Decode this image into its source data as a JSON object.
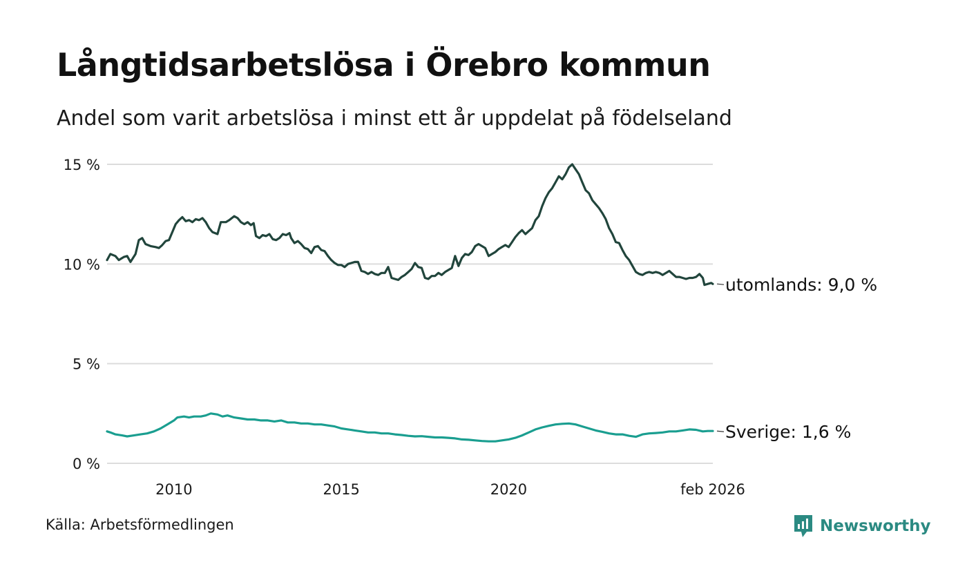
{
  "title": "Långtidsarbetslösa i Örebro kommun",
  "subtitle": "Andel som varit arbetslösa i minst ett år uppdelat på födelseland",
  "source": "Källa: Arbetsförmedlingen",
  "brand": {
    "name": "Newsworthy",
    "icon": "newsworthy-logo-icon",
    "color": "#2b8a82"
  },
  "chart_data": {
    "type": "line",
    "title": "Långtidsarbetslösa i Örebro kommun",
    "xlabel": "",
    "ylabel": "",
    "ylim": [
      0,
      15
    ],
    "xlim": [
      2008.0,
      2026.1
    ],
    "grid": true,
    "yticks": [
      0,
      5,
      10,
      15
    ],
    "ytick_labels": [
      "0 %",
      "5 %",
      "10 %",
      "15 %"
    ],
    "xticks": [
      2010,
      2015,
      2020,
      2026.1
    ],
    "xtick_labels": [
      "2010",
      "2015",
      "2020",
      "feb 2026"
    ],
    "series": [
      {
        "name": "utomlands",
        "label": "utomlands: 9,0 %",
        "color": "#21453c",
        "points": [
          [
            2008.0,
            10.2
          ],
          [
            2008.1,
            10.5
          ],
          [
            2008.25,
            10.4
          ],
          [
            2008.35,
            10.2
          ],
          [
            2008.5,
            10.35
          ],
          [
            2008.6,
            10.4
          ],
          [
            2008.7,
            10.1
          ],
          [
            2008.85,
            10.5
          ],
          [
            2008.95,
            11.2
          ],
          [
            2009.05,
            11.3
          ],
          [
            2009.15,
            11.0
          ],
          [
            2009.3,
            10.9
          ],
          [
            2009.45,
            10.85
          ],
          [
            2009.55,
            10.8
          ],
          [
            2009.65,
            10.95
          ],
          [
            2009.75,
            11.15
          ],
          [
            2009.85,
            11.2
          ],
          [
            2009.95,
            11.6
          ],
          [
            2010.05,
            12.0
          ],
          [
            2010.15,
            12.2
          ],
          [
            2010.25,
            12.35
          ],
          [
            2010.35,
            12.15
          ],
          [
            2010.45,
            12.2
          ],
          [
            2010.55,
            12.1
          ],
          [
            2010.65,
            12.25
          ],
          [
            2010.75,
            12.2
          ],
          [
            2010.85,
            12.3
          ],
          [
            2010.95,
            12.1
          ],
          [
            2011.05,
            11.8
          ],
          [
            2011.15,
            11.6
          ],
          [
            2011.3,
            11.5
          ],
          [
            2011.4,
            12.1
          ],
          [
            2011.55,
            12.1
          ],
          [
            2011.65,
            12.2
          ],
          [
            2011.8,
            12.4
          ],
          [
            2011.9,
            12.3
          ],
          [
            2012.0,
            12.1
          ],
          [
            2012.1,
            12.0
          ],
          [
            2012.2,
            12.1
          ],
          [
            2012.3,
            11.95
          ],
          [
            2012.38,
            12.05
          ],
          [
            2012.45,
            11.4
          ],
          [
            2012.55,
            11.3
          ],
          [
            2012.65,
            11.45
          ],
          [
            2012.75,
            11.4
          ],
          [
            2012.85,
            11.5
          ],
          [
            2012.95,
            11.25
          ],
          [
            2013.05,
            11.2
          ],
          [
            2013.15,
            11.3
          ],
          [
            2013.25,
            11.5
          ],
          [
            2013.35,
            11.45
          ],
          [
            2013.45,
            11.55
          ],
          [
            2013.5,
            11.3
          ],
          [
            2013.6,
            11.05
          ],
          [
            2013.7,
            11.15
          ],
          [
            2013.8,
            11.0
          ],
          [
            2013.9,
            10.8
          ],
          [
            2014.0,
            10.75
          ],
          [
            2014.1,
            10.55
          ],
          [
            2014.2,
            10.85
          ],
          [
            2014.3,
            10.9
          ],
          [
            2014.4,
            10.7
          ],
          [
            2014.5,
            10.65
          ],
          [
            2014.6,
            10.4
          ],
          [
            2014.7,
            10.2
          ],
          [
            2014.8,
            10.05
          ],
          [
            2014.9,
            9.95
          ],
          [
            2015.0,
            9.95
          ],
          [
            2015.1,
            9.85
          ],
          [
            2015.2,
            10.0
          ],
          [
            2015.3,
            10.05
          ],
          [
            2015.4,
            10.1
          ],
          [
            2015.5,
            10.1
          ],
          [
            2015.6,
            9.65
          ],
          [
            2015.7,
            9.6
          ],
          [
            2015.8,
            9.5
          ],
          [
            2015.9,
            9.6
          ],
          [
            2016.0,
            9.5
          ],
          [
            2016.1,
            9.45
          ],
          [
            2016.2,
            9.55
          ],
          [
            2016.3,
            9.55
          ],
          [
            2016.4,
            9.85
          ],
          [
            2016.5,
            9.3
          ],
          [
            2016.6,
            9.25
          ],
          [
            2016.7,
            9.2
          ],
          [
            2016.8,
            9.35
          ],
          [
            2016.9,
            9.45
          ],
          [
            2017.0,
            9.6
          ],
          [
            2017.1,
            9.75
          ],
          [
            2017.2,
            10.05
          ],
          [
            2017.3,
            9.85
          ],
          [
            2017.4,
            9.8
          ],
          [
            2017.5,
            9.3
          ],
          [
            2017.6,
            9.25
          ],
          [
            2017.7,
            9.4
          ],
          [
            2017.8,
            9.4
          ],
          [
            2017.9,
            9.55
          ],
          [
            2018.0,
            9.45
          ],
          [
            2018.1,
            9.6
          ],
          [
            2018.2,
            9.7
          ],
          [
            2018.3,
            9.8
          ],
          [
            2018.4,
            10.4
          ],
          [
            2018.5,
            9.9
          ],
          [
            2018.6,
            10.3
          ],
          [
            2018.7,
            10.5
          ],
          [
            2018.8,
            10.45
          ],
          [
            2018.9,
            10.6
          ],
          [
            2019.0,
            10.9
          ],
          [
            2019.1,
            11.0
          ],
          [
            2019.2,
            10.9
          ],
          [
            2019.3,
            10.8
          ],
          [
            2019.4,
            10.4
          ],
          [
            2019.5,
            10.5
          ],
          [
            2019.6,
            10.6
          ],
          [
            2019.7,
            10.75
          ],
          [
            2019.8,
            10.85
          ],
          [
            2019.9,
            10.95
          ],
          [
            2020.0,
            10.85
          ],
          [
            2020.1,
            11.1
          ],
          [
            2020.2,
            11.35
          ],
          [
            2020.3,
            11.55
          ],
          [
            2020.4,
            11.7
          ],
          [
            2020.5,
            11.5
          ],
          [
            2020.6,
            11.65
          ],
          [
            2020.7,
            11.8
          ],
          [
            2020.8,
            12.2
          ],
          [
            2020.9,
            12.4
          ],
          [
            2021.0,
            12.9
          ],
          [
            2021.1,
            13.3
          ],
          [
            2021.2,
            13.6
          ],
          [
            2021.3,
            13.8
          ],
          [
            2021.4,
            14.1
          ],
          [
            2021.5,
            14.4
          ],
          [
            2021.6,
            14.25
          ],
          [
            2021.7,
            14.5
          ],
          [
            2021.8,
            14.85
          ],
          [
            2021.9,
            15.0
          ],
          [
            2022.0,
            14.75
          ],
          [
            2022.1,
            14.5
          ],
          [
            2022.2,
            14.1
          ],
          [
            2022.3,
            13.7
          ],
          [
            2022.4,
            13.55
          ],
          [
            2022.5,
            13.2
          ],
          [
            2022.6,
            13.0
          ],
          [
            2022.7,
            12.8
          ],
          [
            2022.8,
            12.55
          ],
          [
            2022.9,
            12.25
          ],
          [
            2023.0,
            11.8
          ],
          [
            2023.1,
            11.5
          ],
          [
            2023.2,
            11.1
          ],
          [
            2023.3,
            11.05
          ],
          [
            2023.4,
            10.7
          ],
          [
            2023.5,
            10.4
          ],
          [
            2023.6,
            10.2
          ],
          [
            2023.7,
            9.9
          ],
          [
            2023.8,
            9.6
          ],
          [
            2023.9,
            9.5
          ],
          [
            2024.0,
            9.45
          ],
          [
            2024.1,
            9.55
          ],
          [
            2024.2,
            9.6
          ],
          [
            2024.3,
            9.55
          ],
          [
            2024.4,
            9.6
          ],
          [
            2024.5,
            9.55
          ],
          [
            2024.6,
            9.45
          ],
          [
            2024.7,
            9.55
          ],
          [
            2024.8,
            9.65
          ],
          [
            2024.9,
            9.5
          ],
          [
            2025.0,
            9.35
          ],
          [
            2025.1,
            9.35
          ],
          [
            2025.2,
            9.3
          ],
          [
            2025.3,
            9.25
          ],
          [
            2025.4,
            9.3
          ],
          [
            2025.5,
            9.3
          ],
          [
            2025.6,
            9.35
          ],
          [
            2025.7,
            9.5
          ],
          [
            2025.8,
            9.3
          ],
          [
            2025.85,
            8.95
          ],
          [
            2025.95,
            9.0
          ],
          [
            2026.05,
            9.05
          ],
          [
            2026.1,
            9.0
          ]
        ]
      },
      {
        "name": "Sverige",
        "label": "Sverige: 1,6 %",
        "color": "#1a9e90",
        "points": [
          [
            2008.0,
            1.6
          ],
          [
            2008.1,
            1.55
          ],
          [
            2008.25,
            1.45
          ],
          [
            2008.45,
            1.4
          ],
          [
            2008.6,
            1.35
          ],
          [
            2008.8,
            1.4
          ],
          [
            2009.0,
            1.45
          ],
          [
            2009.2,
            1.5
          ],
          [
            2009.4,
            1.6
          ],
          [
            2009.6,
            1.75
          ],
          [
            2009.8,
            1.95
          ],
          [
            2010.0,
            2.15
          ],
          [
            2010.1,
            2.3
          ],
          [
            2010.3,
            2.35
          ],
          [
            2010.45,
            2.3
          ],
          [
            2010.6,
            2.35
          ],
          [
            2010.8,
            2.35
          ],
          [
            2010.95,
            2.4
          ],
          [
            2011.1,
            2.5
          ],
          [
            2011.3,
            2.45
          ],
          [
            2011.45,
            2.35
          ],
          [
            2011.6,
            2.4
          ],
          [
            2011.8,
            2.3
          ],
          [
            2012.0,
            2.25
          ],
          [
            2012.2,
            2.2
          ],
          [
            2012.4,
            2.2
          ],
          [
            2012.6,
            2.15
          ],
          [
            2012.8,
            2.15
          ],
          [
            2013.0,
            2.1
          ],
          [
            2013.2,
            2.15
          ],
          [
            2013.4,
            2.05
          ],
          [
            2013.6,
            2.05
          ],
          [
            2013.8,
            2.0
          ],
          [
            2014.0,
            2.0
          ],
          [
            2014.2,
            1.95
          ],
          [
            2014.4,
            1.95
          ],
          [
            2014.6,
            1.9
          ],
          [
            2014.8,
            1.85
          ],
          [
            2015.0,
            1.75
          ],
          [
            2015.2,
            1.7
          ],
          [
            2015.4,
            1.65
          ],
          [
            2015.6,
            1.6
          ],
          [
            2015.8,
            1.55
          ],
          [
            2016.0,
            1.55
          ],
          [
            2016.2,
            1.5
          ],
          [
            2016.4,
            1.5
          ],
          [
            2016.6,
            1.45
          ],
          [
            2016.8,
            1.42
          ],
          [
            2017.0,
            1.38
          ],
          [
            2017.2,
            1.35
          ],
          [
            2017.4,
            1.36
          ],
          [
            2017.6,
            1.33
          ],
          [
            2017.8,
            1.3
          ],
          [
            2018.0,
            1.3
          ],
          [
            2018.2,
            1.28
          ],
          [
            2018.4,
            1.25
          ],
          [
            2018.6,
            1.2
          ],
          [
            2018.8,
            1.18
          ],
          [
            2019.0,
            1.15
          ],
          [
            2019.2,
            1.12
          ],
          [
            2019.4,
            1.1
          ],
          [
            2019.6,
            1.1
          ],
          [
            2019.8,
            1.15
          ],
          [
            2020.0,
            1.2
          ],
          [
            2020.2,
            1.28
          ],
          [
            2020.4,
            1.4
          ],
          [
            2020.6,
            1.55
          ],
          [
            2020.8,
            1.7
          ],
          [
            2021.0,
            1.8
          ],
          [
            2021.2,
            1.88
          ],
          [
            2021.4,
            1.95
          ],
          [
            2021.6,
            1.98
          ],
          [
            2021.8,
            2.0
          ],
          [
            2022.0,
            1.95
          ],
          [
            2022.2,
            1.85
          ],
          [
            2022.4,
            1.75
          ],
          [
            2022.6,
            1.65
          ],
          [
            2022.8,
            1.58
          ],
          [
            2023.0,
            1.5
          ],
          [
            2023.2,
            1.45
          ],
          [
            2023.4,
            1.45
          ],
          [
            2023.6,
            1.38
          ],
          [
            2023.8,
            1.33
          ],
          [
            2024.0,
            1.45
          ],
          [
            2024.2,
            1.5
          ],
          [
            2024.4,
            1.52
          ],
          [
            2024.6,
            1.55
          ],
          [
            2024.8,
            1.6
          ],
          [
            2025.0,
            1.6
          ],
          [
            2025.2,
            1.65
          ],
          [
            2025.4,
            1.7
          ],
          [
            2025.6,
            1.68
          ],
          [
            2025.8,
            1.6
          ],
          [
            2025.95,
            1.62
          ],
          [
            2026.1,
            1.62
          ]
        ]
      }
    ]
  }
}
